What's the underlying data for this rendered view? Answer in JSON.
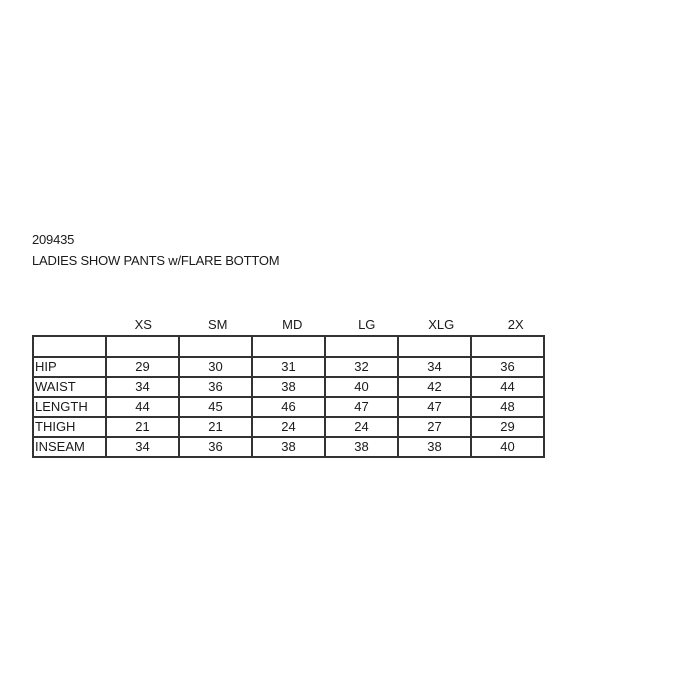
{
  "product_code": "209435",
  "title": "LADIES SHOW PANTS w/FLARE BOTTOM",
  "columns": [
    "XS",
    "SM",
    "MD",
    "LG",
    "XLG",
    "2X"
  ],
  "rows": [
    {
      "label": "HIP",
      "values": [
        "29",
        "30",
        "31",
        "32",
        "34",
        "36"
      ]
    },
    {
      "label": "WAIST",
      "values": [
        "34",
        "36",
        "38",
        "40",
        "42",
        "44"
      ]
    },
    {
      "label": "LENGTH",
      "values": [
        "44",
        "45",
        "46",
        "47",
        "47",
        "48"
      ]
    },
    {
      "label": "THIGH",
      "values": [
        "21",
        "21",
        "24",
        "24",
        "27",
        "29"
      ]
    },
    {
      "label": "INSEAM",
      "values": [
        "34",
        "36",
        "38",
        "38",
        "38",
        "40"
      ]
    }
  ]
}
